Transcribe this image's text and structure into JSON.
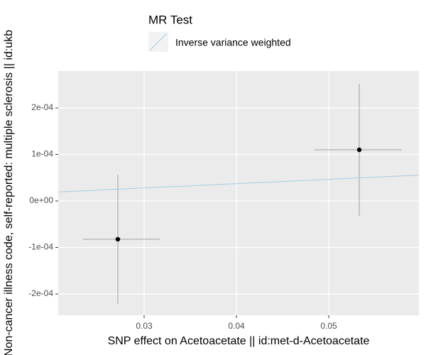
{
  "chart_data": {
    "type": "scatter",
    "x_label": "SNP effect on Acetoacetate || id:met-d-Acetoacetate",
    "y_label": "Non-cancer illness code, self-reported: multiple sclerosis || id:ukb",
    "legend_title": "MR Test",
    "xlim": [
      0.02069,
      0.05977
    ],
    "ylim": [
      -0.0002458,
      0.0002794
    ],
    "xticks": [
      0.03,
      0.04,
      0.05
    ],
    "yticks": [
      {
        "value": -0.0002,
        "label": "-2e-04"
      },
      {
        "value": -0.0001,
        "label": "-1e-04"
      },
      {
        "value": 0,
        "label": "0e+00"
      },
      {
        "value": 0.0001,
        "label": "1e-04"
      },
      {
        "value": 0.0002,
        "label": "2e-04"
      }
    ],
    "grid": true,
    "series": [
      {
        "color": "#000000",
        "x": [
          0.02715,
          0.05331
        ],
        "y": [
          -8.24e-05,
          0.00011
        ],
        "xmin": [
          0.02338,
          0.04846
        ],
        "xmax": [
          0.03169,
          0.05792
        ],
        "ymin": [
          -0.000221,
          -3.2e-05
        ],
        "ymax": [
          5.6e-05,
          0.000252
        ]
      }
    ],
    "lines": [
      {
        "name": "Inverse variance weighted",
        "slope": 0.00093,
        "color": "#a6cee3"
      }
    ]
  }
}
